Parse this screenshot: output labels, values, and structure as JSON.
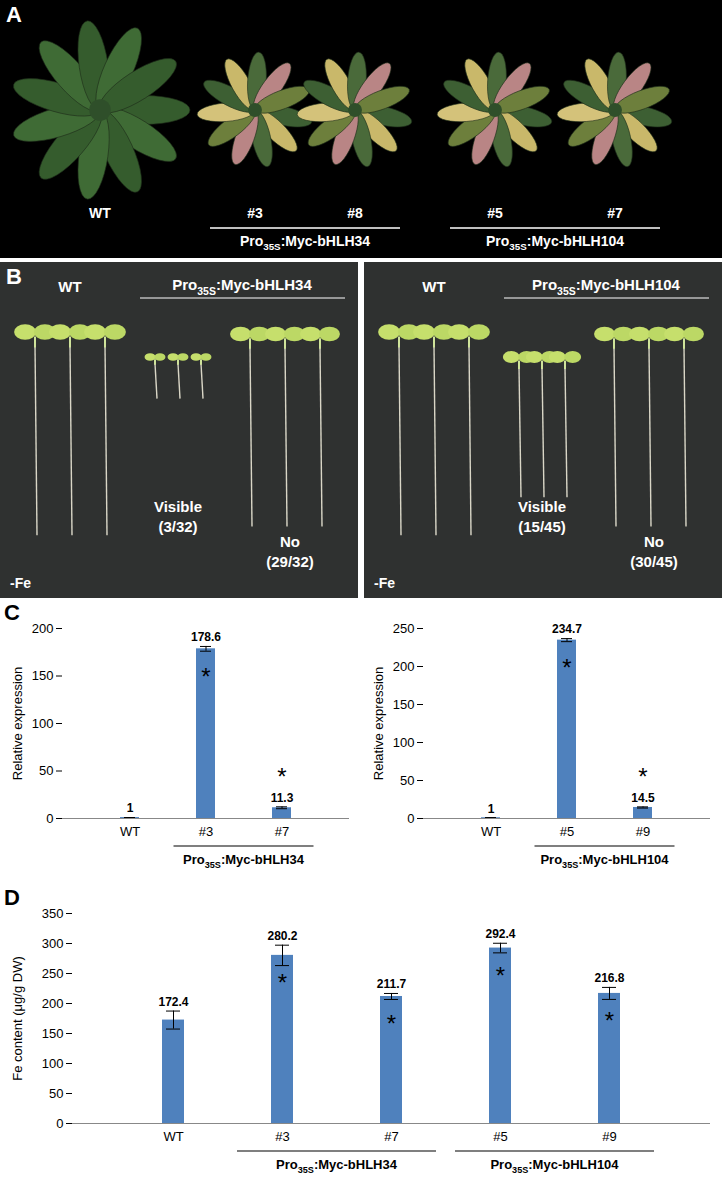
{
  "figure": {
    "panel_letters": [
      "A",
      "B",
      "C",
      "D"
    ],
    "panel_A": {
      "plants": [
        "WT",
        "#3",
        "#8",
        "#5",
        "#7"
      ],
      "groups": [
        {
          "label": {
            "text": "Pro",
            "sub": "35S",
            "after": ":Myc-bHLH34"
          },
          "members": [
            "#3",
            "#8"
          ]
        },
        {
          "label": {
            "text": "Pro",
            "sub": "35S",
            "after": ":Myc-bHLH104"
          },
          "members": [
            "#5",
            "#7"
          ]
        }
      ]
    },
    "panel_B": [
      {
        "control": "WT",
        "genotype": {
          "text": "Pro",
          "sub": "35S",
          "after": ":Myc-bHLH34"
        },
        "visible": {
          "text": "Visible",
          "count": "(3/32)"
        },
        "no": {
          "text": "No",
          "count": "(29/32)"
        },
        "condition": "-Fe"
      },
      {
        "control": "WT",
        "genotype": {
          "text": "Pro",
          "sub": "35S",
          "after": ":Myc-bHLH104"
        },
        "visible": {
          "text": "Visible",
          "count": "(15/45)"
        },
        "no": {
          "text": "No",
          "count": "(30/45)"
        },
        "condition": "-Fe"
      }
    ]
  },
  "chart_data": [
    {
      "type": "bar",
      "ylabel": "Relative expression",
      "categories": [
        "WT",
        "#3",
        "#7"
      ],
      "values": [
        1,
        178.6,
        11.3
      ],
      "errors": [
        0,
        2.5,
        1.0
      ],
      "significance": [
        null,
        "*",
        "*"
      ],
      "groups": [
        {
          "label": {
            "text": "Pro",
            "sub": "35S",
            "after": ":Myc-bHLH34"
          },
          "members": [
            "#3",
            "#7"
          ]
        }
      ],
      "color": "#4f81bd",
      "ylim": [
        0,
        200
      ],
      "yticks": [
        0,
        50,
        100,
        150,
        200
      ],
      "data_labels": true
    },
    {
      "type": "bar",
      "ylabel": "Relative expression",
      "categories": [
        "WT",
        "#5",
        "#9"
      ],
      "values": [
        1,
        234.7,
        14.5
      ],
      "errors": [
        0,
        2.0,
        0.8
      ],
      "significance": [
        null,
        "*",
        "*"
      ],
      "groups": [
        {
          "label": {
            "text": "Pro",
            "sub": "35S",
            "after": ":Myc-bHLH104"
          },
          "members": [
            "#5",
            "#9"
          ]
        }
      ],
      "color": "#4f81bd",
      "ylim": [
        0,
        250
      ],
      "yticks": [
        0,
        50,
        100,
        150,
        200,
        250
      ],
      "data_labels": true
    },
    {
      "type": "bar",
      "ylabel": "Fe content (μg/g DW)",
      "categories": [
        "WT",
        "#3",
        "#7",
        "#5",
        "#9"
      ],
      "values": [
        172.4,
        280.2,
        211.7,
        292.4,
        216.8
      ],
      "errors": [
        15,
        17,
        5,
        8,
        10
      ],
      "significance": [
        null,
        "*",
        "*",
        "*",
        "*"
      ],
      "groups": [
        {
          "label": {
            "text": "Pro",
            "sub": "35S",
            "after": ":Myc-bHLH34"
          },
          "members": [
            "#3",
            "#7"
          ]
        },
        {
          "label": {
            "text": "Pro",
            "sub": "35S",
            "after": ":Myc-bHLH104"
          },
          "members": [
            "#5",
            "#9"
          ]
        }
      ],
      "color": "#4f81bd",
      "ylim": [
        0,
        350
      ],
      "yticks": [
        0,
        50,
        100,
        150,
        200,
        250,
        300,
        350
      ],
      "data_labels": true
    }
  ]
}
